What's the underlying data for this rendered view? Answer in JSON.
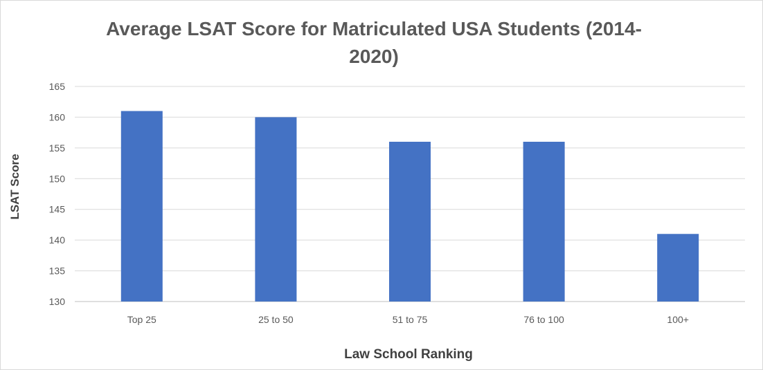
{
  "chart_data": {
    "type": "bar",
    "title": "Average LSAT Score for Matriculated USA Students (2014-2020)",
    "xlabel": "Law School Ranking",
    "ylabel": "LSAT Score",
    "categories": [
      "Top 25",
      "25 to 50",
      "51 to 75",
      "76 to 100",
      "100+"
    ],
    "values": [
      161,
      160,
      156,
      156,
      141
    ],
    "ylim": [
      130,
      165
    ],
    "yticks": [
      130,
      135,
      140,
      145,
      150,
      155,
      160,
      165
    ],
    "bar_color": "#4472c4",
    "grid": true,
    "legend": "none"
  }
}
